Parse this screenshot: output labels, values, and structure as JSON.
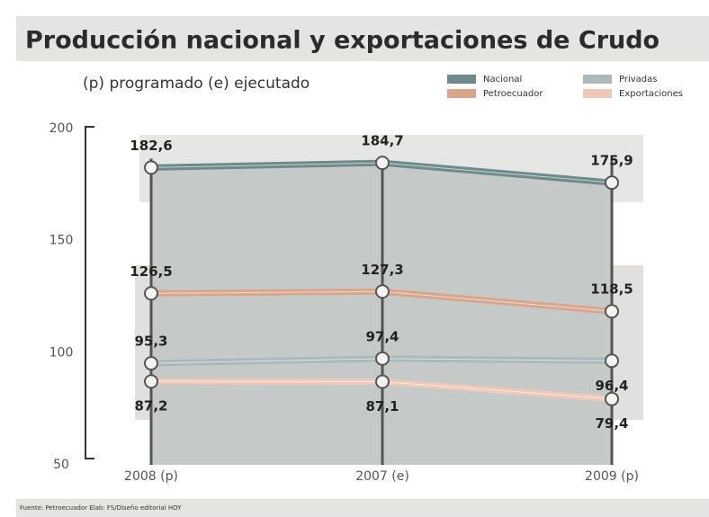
{
  "chart_data": {
    "type": "line",
    "title": "Producción nacional y exportaciones de Crudo",
    "subtitle": "(p) programado (e) ejecutado",
    "source": "Fuente: Petroecuador Elab: FS/Diseño editorial HOY",
    "categories": [
      "2008 (p)",
      "2007 (e)",
      "2009 (p)"
    ],
    "series": [
      {
        "name": "Nacional",
        "color": "#6f8a8a",
        "values": [
          182.6,
          184.7,
          175.9
        ],
        "value_labels": [
          "182,6",
          "184,7",
          "175,9"
        ]
      },
      {
        "name": "Petroecuador",
        "color": "#d9a58c",
        "values": [
          126.5,
          127.3,
          118.5
        ],
        "value_labels": [
          "126,5",
          "127,3",
          "118,5"
        ]
      },
      {
        "name": "Privadas",
        "color": "#a9b9bc",
        "values": [
          95.3,
          97.4,
          96.4
        ],
        "value_labels": [
          "95,3",
          "97,4",
          "96,4"
        ]
      },
      {
        "name": "Exportaciones",
        "color": "#eec8b8",
        "values": [
          87.2,
          87.1,
          79.4
        ],
        "value_labels": [
          "87,2",
          "87,1",
          "79,4"
        ]
      }
    ],
    "ylim": [
      50,
      200
    ],
    "yticks": [
      50,
      100,
      150,
      200
    ]
  }
}
